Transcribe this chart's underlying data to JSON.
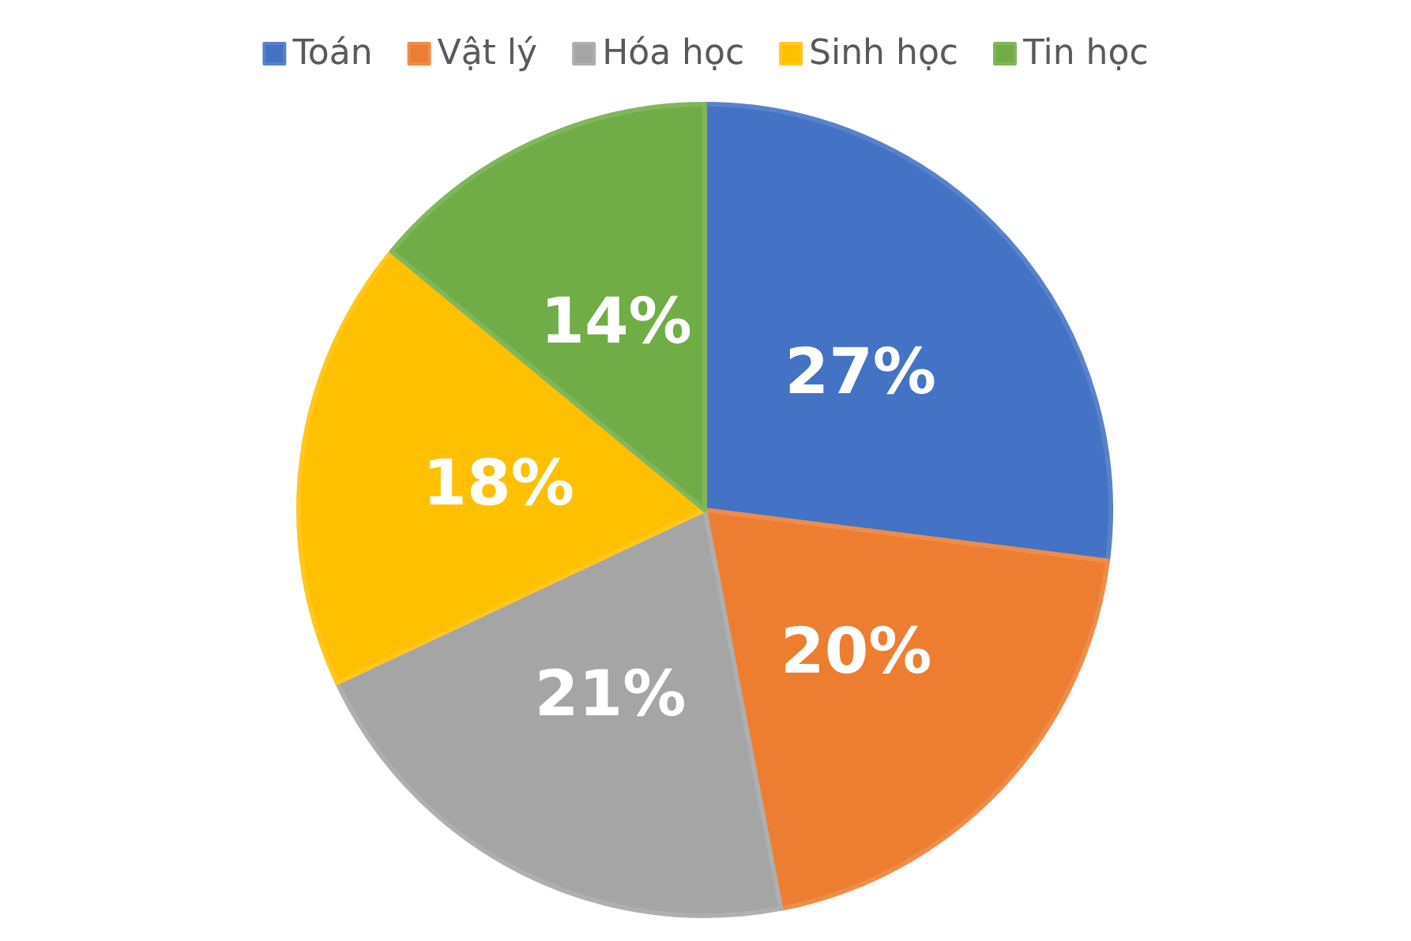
{
  "chart_data": {
    "type": "pie",
    "categories": [
      "Toán",
      "Vật lý",
      "Hóa học",
      "Sinh học",
      "Tin học"
    ],
    "values": [
      27,
      20,
      21,
      18,
      14
    ],
    "colors": [
      "#4472c4",
      "#ed7d31",
      "#a5a5a5",
      "#ffc000",
      "#70ad47"
    ],
    "value_labels": [
      "27%",
      "20%",
      "21%",
      "18%",
      "14%"
    ],
    "legend": "top"
  }
}
